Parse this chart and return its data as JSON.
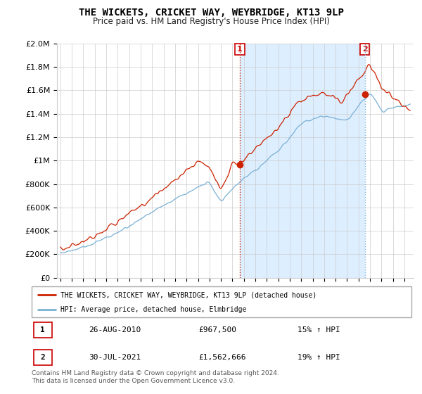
{
  "title": "THE WICKETS, CRICKET WAY, WEYBRIDGE, KT13 9LP",
  "subtitle": "Price paid vs. HM Land Registry's House Price Index (HPI)",
  "legend_line1": "THE WICKETS, CRICKET WAY, WEYBRIDGE, KT13 9LP (detached house)",
  "legend_line2": "HPI: Average price, detached house, Elmbridge",
  "marker1_date": "26-AUG-2010",
  "marker1_price": "£967,500",
  "marker1_hpi": "15% ↑ HPI",
  "marker2_date": "30-JUL-2021",
  "marker2_price": "£1,562,666",
  "marker2_hpi": "19% ↑ HPI",
  "footer": "Contains HM Land Registry data © Crown copyright and database right 2024.\nThis data is licensed under the Open Government Licence v3.0.",
  "ylim": [
    0,
    2000000
  ],
  "yticks": [
    0,
    200000,
    400000,
    600000,
    800000,
    1000000,
    1200000,
    1400000,
    1600000,
    1800000,
    2000000
  ],
  "red_color": "#cc2200",
  "blue_color": "#7ab0d4",
  "shade_color": "#ddeeff",
  "marker1_x": 2010.64,
  "marker2_x": 2021.54,
  "marker1_y": 967500,
  "marker2_y": 1562666,
  "xmin": 1995.0,
  "xmax": 2025.5
}
